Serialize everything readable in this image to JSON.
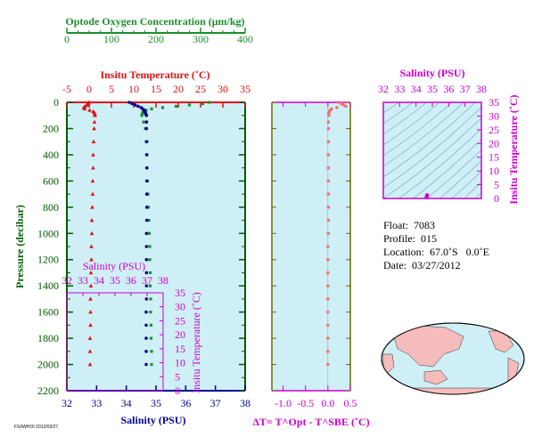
{
  "colors": {
    "oxygen": "#1c8f2e",
    "temperature": "#e01010",
    "salinity": "#00008f",
    "magenta": "#cc00cc",
    "pressure": "#005a00",
    "panel_bg": "#cfeff7",
    "dt_points": "#f07070",
    "land": "#f6bcbc"
  },
  "axes": {
    "oxygen_title": "Optode Oxygen Concentration (μm/kg)",
    "oxygen_ticks": [
      "0",
      "100",
      "200",
      "300",
      "400"
    ],
    "temp_title": "Insitu Temperature (˚C)",
    "temp_ticks": [
      "-5",
      "0",
      "5",
      "10",
      "15",
      "20",
      "25",
      "30",
      "35"
    ],
    "pressure_title": "Pressure (decibar)",
    "pressure_ticks": [
      "0",
      "200",
      "400",
      "600",
      "800",
      "1000",
      "1200",
      "1400",
      "1600",
      "1800",
      "2000",
      "2200"
    ],
    "salinity_title": "Salinity (PSU)",
    "salinity_ticks": [
      "32",
      "33",
      "34",
      "35",
      "36",
      "37",
      "38"
    ],
    "salinity_bottom_ticks": [
      "32",
      "33",
      "34",
      "35",
      "36",
      "37",
      "38"
    ],
    "dt_title": "ΔT= T^Opt - T^SBE (˚C)",
    "dt_ticks": [
      "-1.0",
      "-0.5",
      "0.0",
      "0.5"
    ],
    "ts_temp_title": "Insitu Temperature (˚C)",
    "ts_temp_ticks": [
      "0",
      "5",
      "10",
      "15",
      "20",
      "25",
      "30",
      "35"
    ],
    "ts_sal_title": "Salinity (PSU)",
    "ts_sal_ticks": [
      "32",
      "33",
      "34",
      "35",
      "36",
      "37",
      "38"
    ],
    "inset_sal_title": "Salinity (PSU)",
    "inset_sal_ticks": [
      "32",
      "33",
      "34",
      "35",
      "36",
      "37",
      "38"
    ],
    "inset_temp_title": "Insitu Temperature (˚C)",
    "inset_temp_ticks": [
      "0",
      "5",
      "10",
      "15",
      "20",
      "25",
      "30",
      "35"
    ]
  },
  "info": {
    "float": "Float:  7083",
    "profile": "Profile:  015",
    "location": "Location:  67.0˚S   0.0˚E",
    "date": "Date:  03/27/2012"
  },
  "credit": "FSI/WHOI 2012/03/27",
  "chart_data": [
    {
      "type": "scatter",
      "name": "profile",
      "ylim": [
        2200,
        0
      ],
      "pressure": [
        0,
        10,
        20,
        30,
        40,
        50,
        60,
        70,
        80,
        90,
        100,
        150,
        200,
        300,
        400,
        500,
        600,
        700,
        800,
        900,
        1000,
        1100,
        1200,
        1300,
        1400,
        1500,
        1600,
        1700,
        1800,
        1900,
        2000
      ],
      "series": [
        {
          "name": "Insitu Temperature (˚C)",
          "xlim": [
            -5,
            35
          ],
          "values": [
            -0.1,
            -0.1,
            -0.5,
            -0.9,
            -1.2,
            -1.0,
            0.1,
            0.9,
            1.2,
            1.3,
            1.3,
            1.2,
            1.1,
            1.0,
            0.9,
            0.9,
            0.8,
            0.8,
            0.7,
            0.6,
            0.6,
            0.5,
            0.5,
            0.4,
            0.4,
            0.3,
            0.3,
            0.3,
            0.2,
            0.2,
            0.2
          ]
        },
        {
          "name": "Salinity (PSU)",
          "xlim": [
            32,
            38
          ],
          "values": [
            34.1,
            34.2,
            34.3,
            34.4,
            34.5,
            34.55,
            34.6,
            34.62,
            34.64,
            34.66,
            34.68,
            34.68,
            34.68,
            34.69,
            34.69,
            34.69,
            34.69,
            34.69,
            34.69,
            34.69,
            34.68,
            34.68,
            34.68,
            34.68,
            34.68,
            34.68,
            34.67,
            34.67,
            34.67,
            34.67,
            34.67
          ]
        },
        {
          "name": "Optode Oxygen Concentration (μm/kg)",
          "xlim": [
            0,
            400
          ],
          "values": [
            320,
            305,
            275,
            245,
            215,
            190,
            178,
            172,
            170,
            169,
            168,
            172,
            176,
            178,
            179,
            180,
            181,
            182,
            183,
            184,
            185,
            186,
            186,
            187,
            187,
            188,
            188,
            189,
            189,
            190,
            190
          ]
        }
      ]
    },
    {
      "type": "scatter",
      "name": "temperature difference",
      "xlabel": "ΔT= T^Opt - T^SBE (˚C)",
      "xlim": [
        -1.25,
        0.5
      ],
      "ylim": [
        2200,
        0
      ],
      "pressure": [
        0,
        10,
        20,
        30,
        40,
        50,
        60,
        70,
        80,
        90,
        100,
        150,
        200,
        300,
        400,
        500,
        600,
        700,
        800,
        900,
        1000,
        1100,
        1200,
        1300,
        1400,
        1500,
        1600,
        1700,
        1800,
        1900,
        2000
      ],
      "values": [
        0.25,
        0.3,
        0.35,
        0.4,
        0.2,
        0.08,
        0.05,
        0.03,
        0.02,
        0.02,
        0.02,
        0.01,
        0.01,
        0.01,
        0.01,
        0.01,
        0.01,
        0.01,
        0.01,
        0.01,
        0.01,
        0.0,
        0.0,
        0.0,
        0.0,
        0.0,
        0.0,
        0.0,
        0.0,
        0.0,
        0.0
      ]
    },
    {
      "type": "scatter",
      "name": "T-S diagram",
      "xlabel": "Salinity (PSU)",
      "ylabel": "Insitu Temperature (˚C)",
      "xlim": [
        32,
        38
      ],
      "ylim": [
        0,
        35
      ],
      "salinity": [
        34.65,
        34.68
      ],
      "temperature": [
        0.5,
        1.2
      ]
    },
    {
      "type": "scatter",
      "name": "inset T-S",
      "xlabel": "Salinity (PSU)",
      "ylabel": "Insitu Temperature (˚C)",
      "xlim": [
        32,
        38
      ],
      "ylim": [
        0,
        35
      ],
      "salinity": [],
      "temperature": []
    }
  ]
}
